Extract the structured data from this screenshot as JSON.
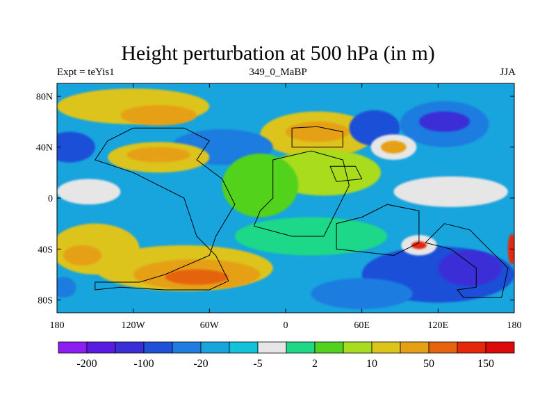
{
  "title": "Height perturbation at 500 hPa (in m)",
  "left_string": "Expt = teYis1",
  "center_string": "349_0_MaBP",
  "right_string": "JJA",
  "map": {
    "lon_range": [
      -180,
      180
    ],
    "lat_range": [
      -90,
      90
    ],
    "lon_ticks": [
      {
        "value": -180,
        "label": "180"
      },
      {
        "value": -120,
        "label": "120W"
      },
      {
        "value": -60,
        "label": "60W"
      },
      {
        "value": 0,
        "label": "0"
      },
      {
        "value": 60,
        "label": "60E"
      },
      {
        "value": 120,
        "label": "120E"
      },
      {
        "value": 180,
        "label": "180"
      }
    ],
    "lat_ticks": [
      {
        "value": 80,
        "label": "80N"
      },
      {
        "value": 40,
        "label": "40N"
      },
      {
        "value": 0,
        "label": "0"
      },
      {
        "value": -40,
        "label": "40S"
      },
      {
        "value": -80,
        "label": "80S"
      }
    ]
  },
  "colorbar": {
    "colors": [
      "#8c1ef2",
      "#5a1be0",
      "#3a2fd6",
      "#1e50d8",
      "#1f7ce0",
      "#18a4dc",
      "#12c2d8",
      "#e6e6e6",
      "#1ed888",
      "#52d21e",
      "#a8dc1e",
      "#dcc41a",
      "#e6a014",
      "#e6640e",
      "#e6280a",
      "#dc0a0a"
    ],
    "labels": [
      {
        "after_box": 1,
        "text": "-200"
      },
      {
        "after_box": 3,
        "text": "-100"
      },
      {
        "after_box": 5,
        "text": "-20"
      },
      {
        "after_box": 7,
        "text": "-5"
      },
      {
        "after_box": 9,
        "text": "2"
      },
      {
        "after_box": 11,
        "text": "10"
      },
      {
        "after_box": 13,
        "text": "50"
      },
      {
        "after_box": 15,
        "text": "150"
      }
    ]
  },
  "field_blobs": [
    {
      "lon": -120,
      "lat": 72,
      "rx": 60,
      "ry": 14,
      "color": "#dcc41a"
    },
    {
      "lon": -100,
      "lat": 65,
      "rx": 30,
      "ry": 8,
      "color": "#e6a014"
    },
    {
      "lon": 25,
      "lat": 50,
      "rx": 45,
      "ry": 18,
      "color": "#dcc41a"
    },
    {
      "lon": 25,
      "lat": 52,
      "rx": 25,
      "ry": 8,
      "color": "#e6a014"
    },
    {
      "lon": 70,
      "lat": 55,
      "rx": 20,
      "ry": 14,
      "color": "#1e50d8"
    },
    {
      "lon": 125,
      "lat": 58,
      "rx": 35,
      "ry": 18,
      "color": "#1f7ce0"
    },
    {
      "lon": 125,
      "lat": 60,
      "rx": 20,
      "ry": 8,
      "color": "#3a2fd6"
    },
    {
      "lon": 85,
      "lat": 40,
      "rx": 18,
      "ry": 10,
      "color": "#e6e6e6"
    },
    {
      "lon": 85,
      "lat": 40,
      "rx": 10,
      "ry": 5,
      "color": "#e6a014"
    },
    {
      "lon": -170,
      "lat": 40,
      "rx": 20,
      "ry": 12,
      "color": "#1e50d8"
    },
    {
      "lon": -50,
      "lat": 40,
      "rx": 40,
      "ry": 14,
      "color": "#1f7ce0"
    },
    {
      "lon": -100,
      "lat": 32,
      "rx": 40,
      "ry": 12,
      "color": "#dcc41a"
    },
    {
      "lon": -100,
      "lat": 34,
      "rx": 25,
      "ry": 6,
      "color": "#e6a014"
    },
    {
      "lon": -155,
      "lat": 5,
      "rx": 25,
      "ry": 10,
      "color": "#e6e6e6"
    },
    {
      "lon": 130,
      "lat": 5,
      "rx": 45,
      "ry": 12,
      "color": "#e6e6e6"
    },
    {
      "lon": 30,
      "lat": 20,
      "rx": 45,
      "ry": 18,
      "color": "#a8dc1e"
    },
    {
      "lon": -20,
      "lat": 10,
      "rx": 30,
      "ry": 25,
      "color": "#52d21e"
    },
    {
      "lon": -150,
      "lat": -40,
      "rx": 35,
      "ry": 20,
      "color": "#dcc41a"
    },
    {
      "lon": -160,
      "lat": -45,
      "rx": 15,
      "ry": 8,
      "color": "#e6a014"
    },
    {
      "lon": -80,
      "lat": -55,
      "rx": 70,
      "ry": 18,
      "color": "#dcc41a"
    },
    {
      "lon": -70,
      "lat": -60,
      "rx": 50,
      "ry": 12,
      "color": "#e6a014"
    },
    {
      "lon": -70,
      "lat": -62,
      "rx": 25,
      "ry": 6,
      "color": "#e6640e"
    },
    {
      "lon": 20,
      "lat": -30,
      "rx": 60,
      "ry": 15,
      "color": "#1ed888"
    },
    {
      "lon": 120,
      "lat": -60,
      "rx": 60,
      "ry": 22,
      "color": "#1e50d8"
    },
    {
      "lon": 145,
      "lat": -55,
      "rx": 25,
      "ry": 14,
      "color": "#3a2fd6"
    },
    {
      "lon": 60,
      "lat": -75,
      "rx": 40,
      "ry": 12,
      "color": "#1f7ce0"
    },
    {
      "lon": 105,
      "lat": -37,
      "rx": 14,
      "ry": 8,
      "color": "#e6e6e6"
    },
    {
      "lon": 105,
      "lat": -37,
      "rx": 6,
      "ry": 3,
      "color": "#e6280a"
    },
    {
      "lon": -175,
      "lat": -70,
      "rx": 10,
      "ry": 8,
      "color": "#1f7ce0"
    },
    {
      "lon": 178,
      "lat": -40,
      "rx": 3,
      "ry": 12,
      "color": "#e6280a"
    }
  ],
  "coastlines": [
    [
      [
        -120,
        55
      ],
      [
        -140,
        45
      ],
      [
        -150,
        30
      ],
      [
        -120,
        20
      ],
      [
        -100,
        10
      ],
      [
        -80,
        0
      ],
      [
        -70,
        -30
      ],
      [
        -55,
        -45
      ],
      [
        -45,
        -65
      ],
      [
        -60,
        -72
      ],
      [
        -95,
        -72
      ],
      [
        -130,
        -70
      ],
      [
        -150,
        -72
      ],
      [
        -150,
        -66
      ],
      [
        -115,
        -66
      ],
      [
        -95,
        -60
      ],
      [
        -60,
        -45
      ],
      [
        -55,
        -30
      ],
      [
        -40,
        -5
      ],
      [
        -50,
        15
      ],
      [
        -70,
        30
      ],
      [
        -60,
        45
      ],
      [
        -80,
        55
      ],
      [
        -120,
        55
      ]
    ],
    [
      [
        -25,
        -22
      ],
      [
        -20,
        -10
      ],
      [
        -10,
        0
      ],
      [
        -10,
        30
      ],
      [
        20,
        37
      ],
      [
        45,
        30
      ],
      [
        50,
        10
      ],
      [
        30,
        -30
      ],
      [
        5,
        -30
      ],
      [
        -25,
        -22
      ]
    ],
    [
      [
        60,
        -15
      ],
      [
        80,
        -5
      ],
      [
        105,
        -10
      ],
      [
        105,
        -35
      ],
      [
        85,
        -45
      ],
      [
        40,
        -40
      ],
      [
        40,
        -20
      ],
      [
        60,
        -15
      ]
    ],
    [
      [
        125,
        -20
      ],
      [
        145,
        -25
      ],
      [
        160,
        -40
      ],
      [
        175,
        -55
      ],
      [
        170,
        -78
      ],
      [
        140,
        -78
      ],
      [
        135,
        -72
      ],
      [
        150,
        -70
      ],
      [
        150,
        -55
      ],
      [
        130,
        -40
      ],
      [
        110,
        -35
      ],
      [
        125,
        -20
      ]
    ],
    [
      [
        5,
        55
      ],
      [
        25,
        56
      ],
      [
        45,
        52
      ],
      [
        45,
        40
      ],
      [
        5,
        40
      ],
      [
        5,
        55
      ]
    ],
    [
      [
        35,
        25
      ],
      [
        55,
        25
      ],
      [
        60,
        15
      ],
      [
        40,
        13
      ],
      [
        35,
        25
      ]
    ]
  ]
}
